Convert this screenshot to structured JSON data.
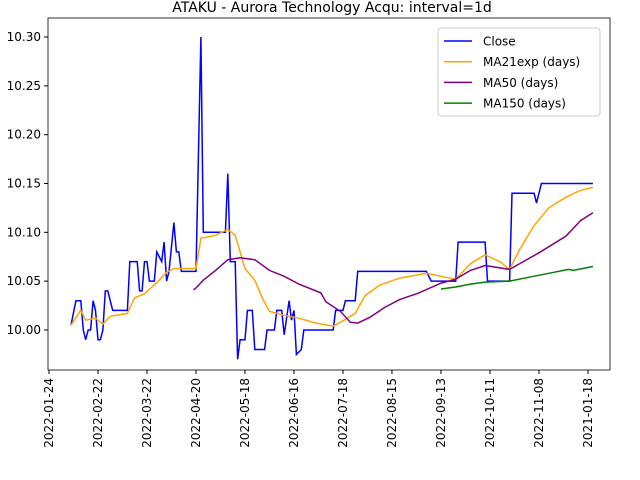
{
  "chart_data": {
    "type": "line",
    "title": "ATAKU - Aurora Technology Acqu: interval=1d",
    "xlim": [
      -0.4,
      229
    ],
    "ylim": [
      9.959,
      10.3195
    ],
    "yticks": [
      {
        "value": 10.0,
        "label": "10.00"
      },
      {
        "value": 10.05,
        "label": "10.05"
      },
      {
        "value": 10.1,
        "label": "10.10"
      },
      {
        "value": 10.15,
        "label": "10.15"
      },
      {
        "value": 10.2,
        "label": "10.20"
      },
      {
        "value": 10.25,
        "label": "10.25"
      },
      {
        "value": 10.3,
        "label": "10.30"
      }
    ],
    "xticks": [
      {
        "value": 0,
        "label": "2022-01-24"
      },
      {
        "value": 20,
        "label": "2022-02-22"
      },
      {
        "value": 40,
        "label": "2022-03-22"
      },
      {
        "value": 60,
        "label": "2022-04-20"
      },
      {
        "value": 80,
        "label": "2022-05-18"
      },
      {
        "value": 100,
        "label": "2022-06-16"
      },
      {
        "value": 120,
        "label": "2022-07-18"
      },
      {
        "value": 140,
        "label": "2022-08-15"
      },
      {
        "value": 160,
        "label": "2022-09-13"
      },
      {
        "value": 180,
        "label": "2022-10-11"
      },
      {
        "value": 200,
        "label": "2022-11-08"
      },
      {
        "value": 220,
        "label": "2021-01-18"
      }
    ],
    "legend": "upper right",
    "series": [
      {
        "name": "Close",
        "color": "#0000ff",
        "x": [
          9,
          11,
          13,
          14,
          15,
          16,
          17,
          18,
          19,
          20,
          21,
          22,
          23,
          24,
          26,
          32,
          33,
          36,
          37,
          38,
          39,
          40,
          41,
          43,
          44,
          46,
          47,
          48,
          49,
          51,
          52,
          53,
          54,
          60,
          62,
          63,
          72,
          73,
          74,
          76,
          77,
          78,
          80,
          81,
          83,
          84,
          88,
          89,
          92,
          93,
          95,
          96,
          98,
          99,
          100,
          101,
          103,
          104,
          116,
          117,
          120,
          121,
          125,
          126,
          154,
          156,
          166,
          167,
          178,
          179,
          188,
          189,
          198,
          199,
          201,
          222
        ],
        "values": [
          10.005,
          10.03,
          10.03,
          10.0,
          9.99,
          10.0,
          10.0,
          10.03,
          10.02,
          9.99,
          9.99,
          10.0,
          10.04,
          10.04,
          10.02,
          10.02,
          10.07,
          10.07,
          10.04,
          10.04,
          10.07,
          10.07,
          10.05,
          10.05,
          10.08,
          10.07,
          10.09,
          10.05,
          10.06,
          10.11,
          10.08,
          10.08,
          10.06,
          10.06,
          10.3,
          10.1,
          10.1,
          10.16,
          10.07,
          10.07,
          9.97,
          9.99,
          9.99,
          10.02,
          10.02,
          9.98,
          9.98,
          10.0,
          10.0,
          10.02,
          10.02,
          9.995,
          10.03,
          10.01,
          10.02,
          9.975,
          9.98,
          10.0,
          10.0,
          10.02,
          10.02,
          10.03,
          10.03,
          10.06,
          10.06,
          10.05,
          10.05,
          10.09,
          10.09,
          10.05,
          10.05,
          10.14,
          10.14,
          10.13,
          10.15,
          10.15
        ]
      },
      {
        "name": "MA21exp (days)",
        "color": "#ffa500",
        "x": [
          9,
          13,
          15,
          19,
          22,
          25,
          32,
          35,
          39,
          42,
          45,
          48,
          51,
          54,
          60,
          62,
          68,
          73,
          76,
          80,
          84,
          87,
          90,
          96,
          102,
          109,
          116,
          119,
          125,
          129,
          135,
          143,
          154,
          160,
          166,
          172,
          178,
          184,
          188,
          192,
          198,
          204,
          211,
          217,
          222
        ],
        "values": [
          10.005,
          10.02,
          10.01,
          10.012,
          10.006,
          10.014,
          10.017,
          10.033,
          10.037,
          10.044,
          10.051,
          10.059,
          10.063,
          10.063,
          10.063,
          10.094,
          10.097,
          10.103,
          10.097,
          10.063,
          10.051,
          10.033,
          10.019,
          10.015,
          10.012,
          10.007,
          10.004,
          10.008,
          10.017,
          10.035,
          10.046,
          10.053,
          10.058,
          10.055,
          10.052,
          10.068,
          10.077,
          10.07,
          10.062,
          10.082,
          10.107,
          10.125,
          10.136,
          10.143,
          10.146
        ]
      },
      {
        "name": "MA50 (days)",
        "color": "#800080",
        "x": [
          59,
          60,
          63,
          68,
          73,
          78,
          84,
          90,
          96,
          102,
          111,
          113,
          119,
          123,
          126,
          131,
          137,
          143,
          151,
          160,
          166,
          172,
          178,
          188,
          200,
          211,
          217,
          222
        ],
        "values": [
          10.041,
          10.043,
          10.051,
          10.061,
          10.072,
          10.074,
          10.072,
          10.061,
          10.055,
          10.047,
          10.038,
          10.029,
          10.019,
          10.008,
          10.007,
          10.013,
          10.023,
          10.031,
          10.038,
          10.048,
          10.052,
          10.061,
          10.066,
          10.062,
          10.079,
          10.096,
          10.112,
          10.12
        ]
      },
      {
        "name": "MA150 (days)",
        "color": "#008000",
        "x": [
          160,
          166,
          172,
          178,
          188,
          196,
          204,
          212,
          214,
          222
        ],
        "values": [
          10.042,
          10.044,
          10.047,
          10.049,
          10.05,
          10.054,
          10.058,
          10.062,
          10.061,
          10.065
        ]
      }
    ]
  }
}
